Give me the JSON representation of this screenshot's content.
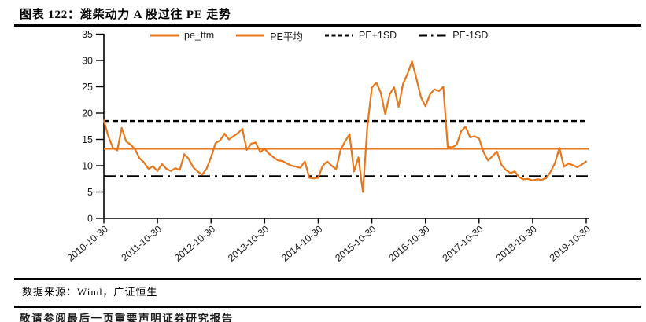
{
  "page": {
    "title": "图表 122：潍柴动力 A 股过往 PE 走势"
  },
  "footer": {
    "source": "数据来源：Wind，广证恒生",
    "disclaimer": "敬请参阅最后一页重要声明证券研究报告"
  },
  "colors": {
    "series_orange": "#E8761A",
    "stat_black": "#000000",
    "axis_black": "#000000",
    "label_color": "#1A1A1A"
  },
  "chart_data": {
    "type": "line",
    "title": "潍柴动力 A 股过往 PE 走势",
    "xlabel": "",
    "ylabel": "",
    "ylim": [
      0,
      35
    ],
    "y_ticks": [
      0,
      5,
      10,
      15,
      20,
      25,
      30,
      35
    ],
    "x_tick_labels": [
      "2010-10-30",
      "2011-10-30",
      "2012-10-30",
      "2013-10-30",
      "2014-10-30",
      "2015-10-30",
      "2016-10-30",
      "2017-10-30",
      "2018-10-30",
      "2019-10-30"
    ],
    "grid": false,
    "legend_position": "top",
    "legend": [
      "pe_ttm",
      "PE平均",
      "PE+1SD",
      "PE-1SD"
    ],
    "series": [
      {
        "name": "pe_ttm",
        "type": "line",
        "color": "#E8761A",
        "frequency": "monthly",
        "start": "2010-10",
        "end": "2019-10",
        "values": [
          18.6,
          15.6,
          13.4,
          12.9,
          17.2,
          14.6,
          14.0,
          13.1,
          11.4,
          10.6,
          9.4,
          9.9,
          9.0,
          10.3,
          9.4,
          9.0,
          9.5,
          9.2,
          12.2,
          11.3,
          9.7,
          8.9,
          8.3,
          9.4,
          11.6,
          14.3,
          14.8,
          16.1,
          15.0,
          15.6,
          16.2,
          17.0,
          13.0,
          14.2,
          14.4,
          12.6,
          13.2,
          12.3,
          11.6,
          11.0,
          10.9,
          10.4,
          10.0,
          9.8,
          9.6,
          10.8,
          7.7,
          7.6,
          7.7,
          10.0,
          10.8,
          10.0,
          9.3,
          13.0,
          14.6,
          16.0,
          8.9,
          11.6,
          5.0,
          17.5,
          24.8,
          25.8,
          23.9,
          19.8,
          23.6,
          24.9,
          21.2,
          25.6,
          27.5,
          29.8,
          26.5,
          23.0,
          21.3,
          23.5,
          24.5,
          24.2,
          25.0,
          13.6,
          13.5,
          14.0,
          16.6,
          17.4,
          15.4,
          15.6,
          15.2,
          12.6,
          11.0,
          11.8,
          12.7,
          10.2,
          9.2,
          8.6,
          8.9,
          7.8,
          7.4,
          7.5,
          7.2,
          7.4,
          7.3,
          7.6,
          8.8,
          10.5,
          13.4,
          9.8,
          10.4,
          10.1,
          9.7,
          10.2,
          10.8
        ]
      },
      {
        "name": "PE平均",
        "type": "hline",
        "color": "#E8761A",
        "style": "solid",
        "value": 13.2
      },
      {
        "name": "PE+1SD",
        "type": "hline",
        "color": "#000000",
        "style": "dashed",
        "value": 18.5
      },
      {
        "name": "PE-1SD",
        "type": "hline",
        "color": "#000000",
        "style": "dashdot",
        "value": 8.0
      }
    ]
  }
}
